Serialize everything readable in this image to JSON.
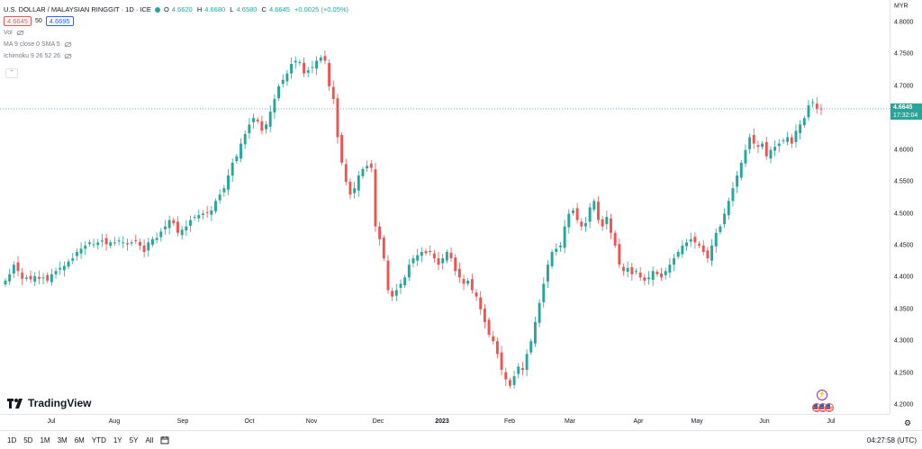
{
  "symbol": {
    "title": "U.S. DOLLAR / MALAYSIAN RINGGIT · 1D · ICE",
    "open_label": "O",
    "open": "4.6620",
    "high_label": "H",
    "high": "4.6680",
    "low_label": "L",
    "low": "4.6580",
    "close_label": "C",
    "close": "4.6645",
    "change": "+0.0025 (+0.05%)",
    "sell_price": "4.6645",
    "spread": "50",
    "buy_price": "4.6695"
  },
  "indicators": {
    "vol": "Vol",
    "ma": "MA 9 close 0 SMA 5",
    "ichimoku": "Ichimoku 9 26 52 26"
  },
  "price_axis": {
    "currency": "MYR",
    "current_price": "4.6645",
    "countdown": "17:32:04"
  },
  "time_axis": {
    "labels": [
      "Jul",
      "Aug",
      "Sep",
      "Oct",
      "Nov",
      "Dec",
      "2023",
      "Feb",
      "Mar",
      "Apr",
      "May",
      "Jun",
      "Jul"
    ]
  },
  "branding": {
    "logo_text": "TradingView"
  },
  "bottom_bar": {
    "ranges": [
      "1D",
      "5D",
      "1M",
      "3M",
      "6M",
      "YTD",
      "1Y",
      "5Y",
      "All"
    ],
    "clock": "04:27:58 (UTC)"
  },
  "colors": {
    "up": "#26a69a",
    "down": "#ef5350",
    "current_line": "#26a69a"
  },
  "chart_data": {
    "type": "candlestick",
    "title": "U.S. DOLLAR / MALAYSIAN RINGGIT · 1D · ICE",
    "ylim": [
      4.19,
      4.82
    ],
    "y_ticks": [
      4.8,
      4.75,
      4.7,
      4.65,
      4.6,
      4.55,
      4.5,
      4.45,
      4.4,
      4.35,
      4.3,
      4.25,
      4.2
    ],
    "x_range": [
      "2022-06-20",
      "2023-06-30"
    ],
    "current_price": 4.6645,
    "series": [
      {
        "name": "",
        "values": [
          4.395,
          4.405,
          4.42,
          4.41,
          4.398,
          4.4,
          4.397,
          4.402,
          4.398,
          4.4,
          4.395,
          4.405,
          4.41,
          4.415,
          4.418,
          4.425,
          4.43,
          4.44,
          4.445,
          4.45,
          4.455,
          4.452,
          4.455,
          4.458,
          4.452,
          4.455,
          4.455,
          4.458,
          4.455,
          4.452,
          4.455,
          4.458,
          4.45,
          4.44,
          4.455,
          4.46,
          4.462,
          4.472,
          4.48,
          4.49,
          4.485,
          4.47,
          4.475,
          4.48,
          4.49,
          4.495,
          4.498,
          4.5,
          4.502,
          4.505,
          4.52,
          4.53,
          4.54,
          4.56,
          4.58,
          4.59,
          4.61,
          4.625,
          4.64,
          4.65,
          4.645,
          4.63,
          4.64,
          4.66,
          4.68,
          4.7,
          4.71,
          4.72,
          4.735,
          4.74,
          4.738,
          4.72,
          4.725,
          4.73,
          4.74,
          4.745,
          4.74,
          4.7,
          4.68,
          4.62,
          4.58,
          4.55,
          4.53,
          4.54,
          4.56,
          4.57,
          4.575,
          4.572,
          4.48,
          4.46,
          4.43,
          4.38,
          4.37,
          4.38,
          4.39,
          4.4,
          4.42,
          4.43,
          4.435,
          4.44,
          4.438,
          4.44,
          4.43,
          4.42,
          4.43,
          4.44,
          4.43,
          4.41,
          4.4,
          4.39,
          4.395,
          4.38,
          4.37,
          4.35,
          4.33,
          4.31,
          4.3,
          4.28,
          4.255,
          4.24,
          4.23,
          4.245,
          4.26,
          4.255,
          4.28,
          4.3,
          4.33,
          4.36,
          4.39,
          4.42,
          4.44,
          4.445,
          4.45,
          4.48,
          4.5,
          4.505,
          4.49,
          4.48,
          4.485,
          4.51,
          4.52,
          4.49,
          4.48,
          4.495,
          4.47,
          4.45,
          4.42,
          4.41,
          4.415,
          4.405,
          4.41,
          4.4,
          4.395,
          4.4,
          4.41,
          4.405,
          4.4,
          4.41,
          4.42,
          4.43,
          4.44,
          4.45,
          4.455,
          4.46,
          4.455,
          4.45,
          4.44,
          4.43,
          4.45,
          4.47,
          4.48,
          4.5,
          4.52,
          4.54,
          4.56,
          4.58,
          4.6,
          4.62,
          4.61,
          4.605,
          4.61,
          4.59,
          4.6,
          4.605,
          4.61,
          4.615,
          4.62,
          4.61,
          4.63,
          4.64,
          4.65,
          4.67,
          4.675,
          4.665,
          4.6645
        ]
      }
    ]
  }
}
